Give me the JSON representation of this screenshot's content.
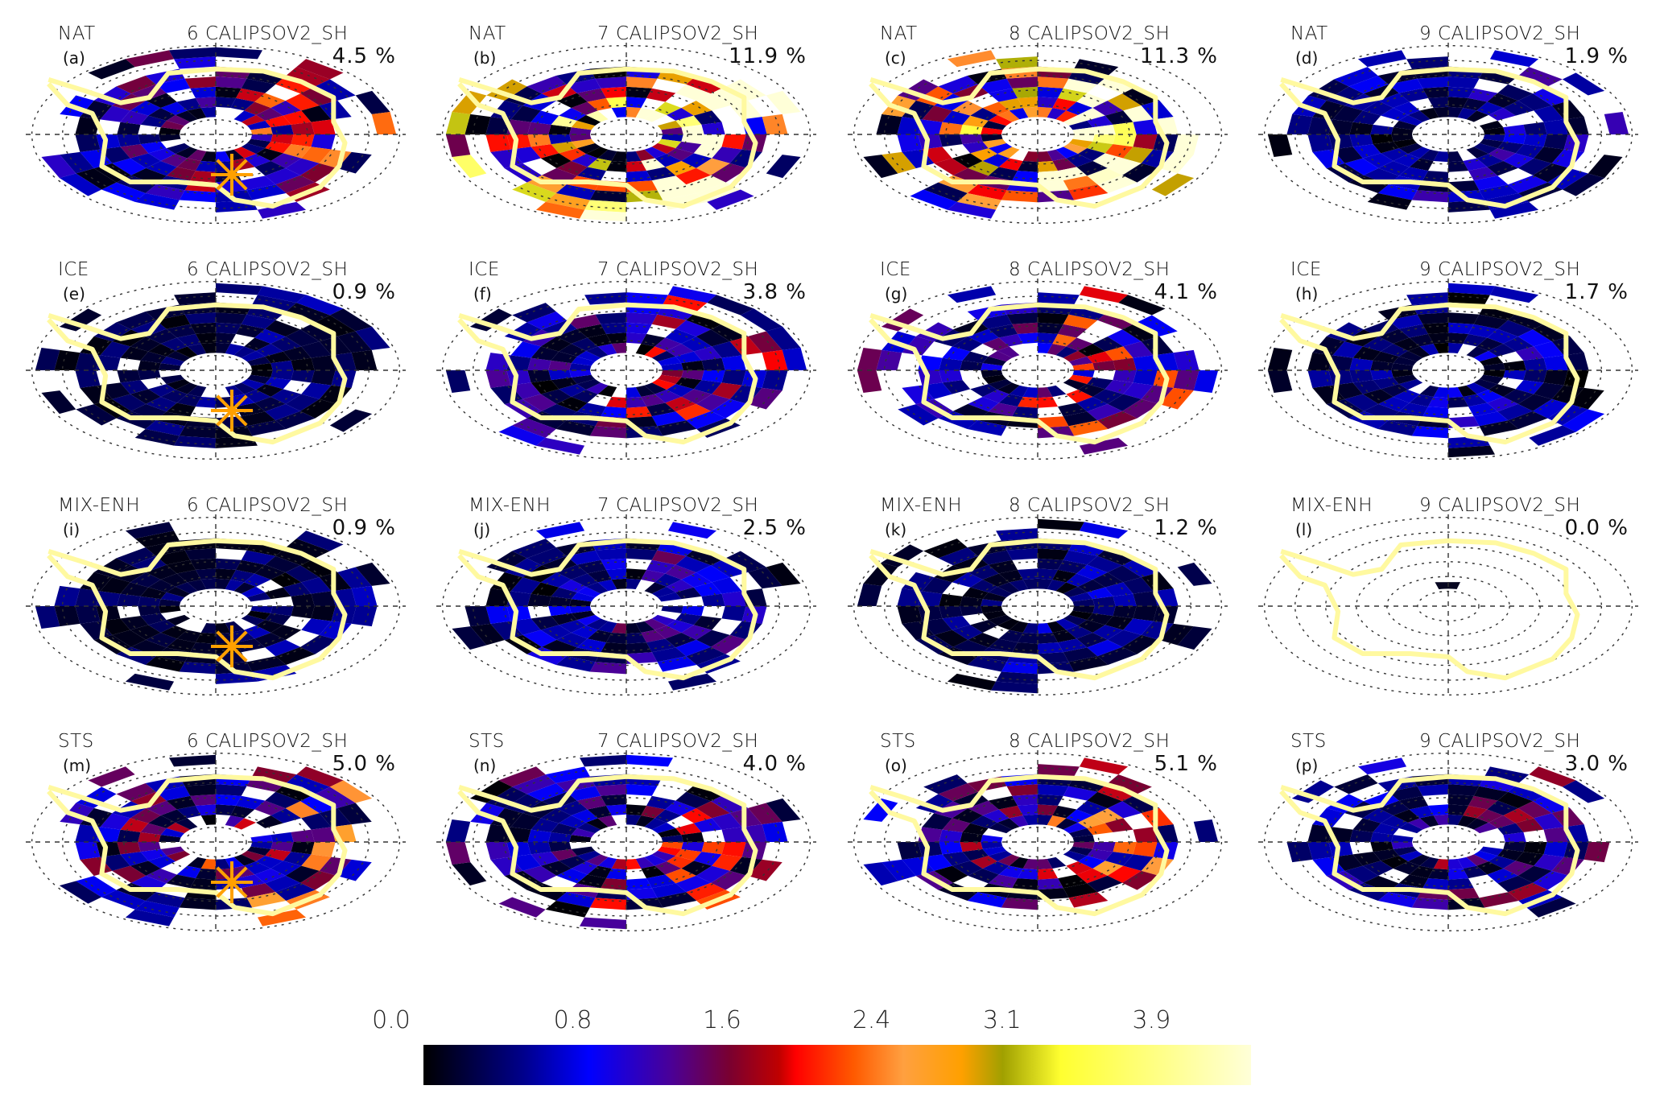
{
  "chart_data": {
    "type": "heatmap",
    "projection": "south polar stereographic",
    "panels": [
      {
        "label": "(a)",
        "class": "NAT",
        "title": "6 CALIPSOV2_SH",
        "percent": "4.5 %",
        "marker": true
      },
      {
        "label": "(b)",
        "class": "NAT",
        "title": "7 CALIPSOV2_SH",
        "percent": "11.9 %",
        "marker": false
      },
      {
        "label": "(c)",
        "class": "NAT",
        "title": "8 CALIPSOV2_SH",
        "percent": "11.3 %",
        "marker": false
      },
      {
        "label": "(d)",
        "class": "NAT",
        "title": "9 CALIPSOV2_SH",
        "percent": "1.9 %",
        "marker": false
      },
      {
        "label": "(e)",
        "class": "ICE",
        "title": "6 CALIPSOV2_SH",
        "percent": "0.9 %",
        "marker": true
      },
      {
        "label": "(f)",
        "class": "ICE",
        "title": "7 CALIPSOV2_SH",
        "percent": "3.8 %",
        "marker": false
      },
      {
        "label": "(g)",
        "class": "ICE",
        "title": "8 CALIPSOV2_SH",
        "percent": "4.1 %",
        "marker": false
      },
      {
        "label": "(h)",
        "class": "ICE",
        "title": "9 CALIPSOV2_SH",
        "percent": "1.7 %",
        "marker": false
      },
      {
        "label": "(i)",
        "class": "MIX-ENH",
        "title": "6 CALIPSOV2_SH",
        "percent": "0.9 %",
        "marker": true
      },
      {
        "label": "(j)",
        "class": "MIX-ENH",
        "title": "7 CALIPSOV2_SH",
        "percent": "2.5 %",
        "marker": false
      },
      {
        "label": "(k)",
        "class": "MIX-ENH",
        "title": "8 CALIPSOV2_SH",
        "percent": "1.2 %",
        "marker": false
      },
      {
        "label": "(l)",
        "class": "MIX-ENH",
        "title": "9 CALIPSOV2_SH",
        "percent": "0.0 %",
        "marker": false
      },
      {
        "label": "(m)",
        "class": "STS",
        "title": "6 CALIPSOV2_SH",
        "percent": "5.0 %",
        "marker": true
      },
      {
        "label": "(n)",
        "class": "STS",
        "title": "7 CALIPSOV2_SH",
        "percent": "4.0 %",
        "marker": false
      },
      {
        "label": "(o)",
        "class": "STS",
        "title": "8 CALIPSOV2_SH",
        "percent": "5.1 %",
        "marker": false
      },
      {
        "label": "(p)",
        "class": "STS",
        "title": "9 CALIPSOV2_SH",
        "percent": "3.0 %",
        "marker": false
      }
    ],
    "colorbar": {
      "ticks": [
        "0.0",
        "0.8",
        "1.6",
        "2.4",
        "3.1",
        "3.9"
      ],
      "range": [
        0.0,
        4.3
      ],
      "colors": [
        "#000000",
        "#00008b",
        "#0000ff",
        "#4b0096",
        "#7a0030",
        "#ff0000",
        "#ff5a00",
        "#ffa040",
        "#ffa000",
        "#a0a000",
        "#ffff30",
        "#ffffd8"
      ]
    },
    "coastline_color": "#fff9a0",
    "marker_color": "#ffa000",
    "grid": true
  }
}
